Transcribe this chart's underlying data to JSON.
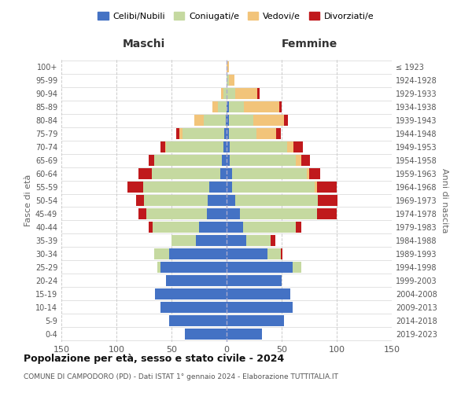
{
  "age_groups": [
    "0-4",
    "5-9",
    "10-14",
    "15-19",
    "20-24",
    "25-29",
    "30-34",
    "35-39",
    "40-44",
    "45-49",
    "50-54",
    "55-59",
    "60-64",
    "65-69",
    "70-74",
    "75-79",
    "80-84",
    "85-89",
    "90-94",
    "95-99",
    "100+"
  ],
  "birth_years": [
    "2019-2023",
    "2014-2018",
    "2009-2013",
    "2004-2008",
    "1999-2003",
    "1994-1998",
    "1989-1993",
    "1984-1988",
    "1979-1983",
    "1974-1978",
    "1969-1973",
    "1964-1968",
    "1959-1963",
    "1954-1958",
    "1949-1953",
    "1944-1948",
    "1939-1943",
    "1934-1938",
    "1929-1933",
    "1924-1928",
    "≤ 1923"
  ],
  "colors": {
    "celibe": "#4472C4",
    "coniugato": "#C5D9A0",
    "vedovo": "#F2C47A",
    "divorziato": "#C0191C"
  },
  "males": {
    "celibe": [
      38,
      52,
      60,
      65,
      55,
      60,
      52,
      28,
      25,
      18,
      17,
      16,
      6,
      4,
      3,
      2,
      1,
      0,
      0,
      0,
      0
    ],
    "coniugato": [
      0,
      0,
      0,
      0,
      0,
      3,
      14,
      22,
      42,
      55,
      58,
      60,
      62,
      62,
      52,
      38,
      20,
      8,
      3,
      0,
      0
    ],
    "vedovo": [
      0,
      0,
      0,
      0,
      0,
      0,
      0,
      0,
      0,
      0,
      0,
      0,
      0,
      0,
      1,
      3,
      8,
      5,
      2,
      0,
      0
    ],
    "divorziato": [
      0,
      0,
      0,
      0,
      0,
      0,
      0,
      0,
      4,
      7,
      7,
      14,
      12,
      5,
      4,
      3,
      0,
      0,
      0,
      0,
      0
    ]
  },
  "females": {
    "nubile": [
      32,
      52,
      60,
      58,
      50,
      60,
      37,
      18,
      15,
      12,
      8,
      5,
      5,
      3,
      3,
      2,
      2,
      2,
      0,
      0,
      0
    ],
    "coniugata": [
      0,
      0,
      0,
      0,
      0,
      8,
      12,
      22,
      48,
      70,
      75,
      75,
      68,
      60,
      52,
      25,
      22,
      14,
      8,
      2,
      0
    ],
    "vedova": [
      0,
      0,
      0,
      0,
      0,
      0,
      0,
      0,
      0,
      0,
      0,
      2,
      2,
      5,
      6,
      18,
      28,
      32,
      20,
      5,
      2
    ],
    "divorziata": [
      0,
      0,
      0,
      0,
      0,
      0,
      2,
      4,
      5,
      18,
      18,
      18,
      10,
      8,
      8,
      4,
      4,
      2,
      2,
      0,
      0
    ]
  },
  "title": "Popolazione per età, sesso e stato civile - 2024",
  "subtitle": "COMUNE DI CAMPODORO (PD) - Dati ISTAT 1° gennaio 2024 - Elaborazione TUTTITALIA.IT",
  "xlabel_left": "Maschi",
  "xlabel_right": "Femmine",
  "ylabel_left": "Fasce di età",
  "ylabel_right": "Anni di nascita",
  "legend_labels": [
    "Celibi/Nubili",
    "Coniugati/e",
    "Vedovi/e",
    "Divorziati/e"
  ],
  "xlim": 150,
  "background_color": "#ffffff",
  "grid_color": "#cccccc"
}
